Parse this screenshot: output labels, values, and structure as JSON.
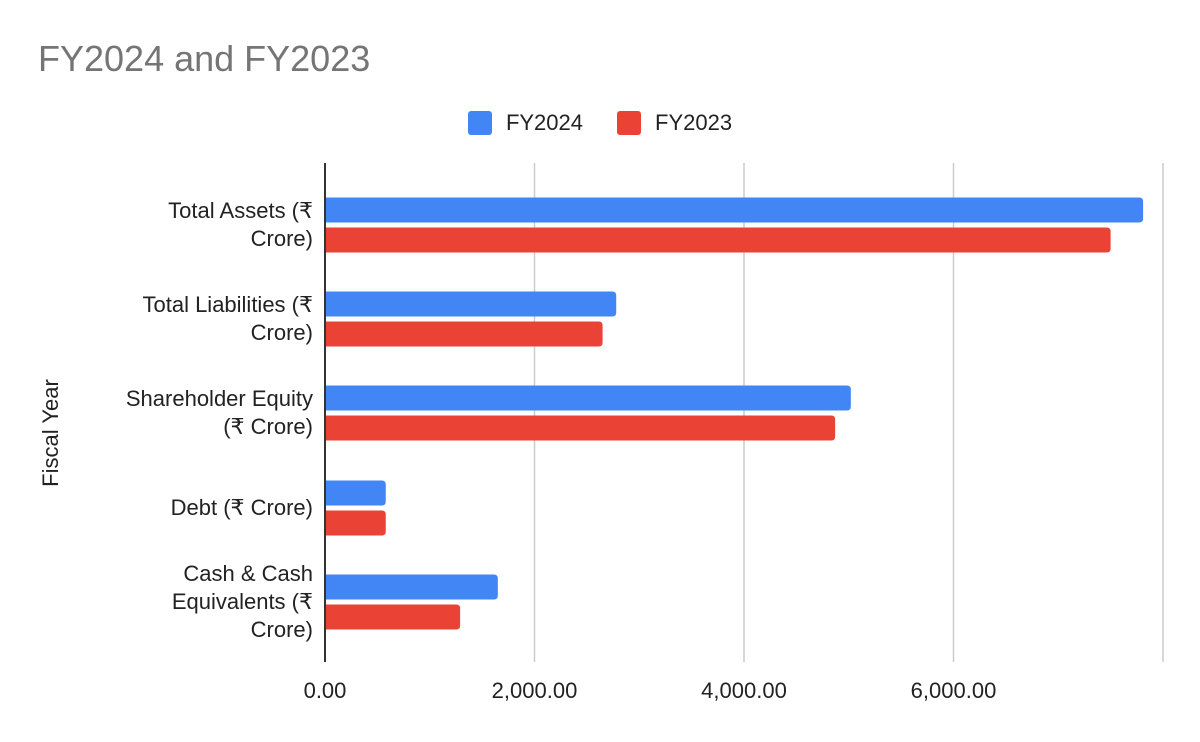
{
  "chart_data": {
    "type": "bar",
    "orientation": "horizontal",
    "title": "FY2024 and FY2023",
    "ylabel": "Fiscal Year",
    "xlabel": "",
    "categories": [
      "Total Assets (₹ Crore)",
      "Total Liabilities (₹ Crore)",
      "Shareholder Equity (₹ Crore)",
      "Debt (₹ Crore)",
      "Cash & Cash Equivalents (₹ Crore)"
    ],
    "category_label_lines": [
      [
        "Total Assets (₹",
        "Crore)"
      ],
      [
        "Total Liabilities (₹",
        "Crore)"
      ],
      [
        "Shareholder Equity",
        "(₹ Crore)"
      ],
      [
        "Debt (₹ Crore)"
      ],
      [
        "Cash & Cash",
        "Equivalents (₹",
        "Crore)"
      ]
    ],
    "series": [
      {
        "name": "FY2024",
        "color": "#4285F4",
        "values": [
          7810,
          2780,
          5020,
          580,
          1650
        ]
      },
      {
        "name": "FY2023",
        "color": "#EA4335",
        "values": [
          7500,
          2650,
          4870,
          580,
          1290
        ]
      }
    ],
    "xlim": [
      0,
      8000
    ],
    "xticks": [
      0,
      2000,
      4000,
      6000
    ],
    "xtick_labels": [
      "0.00",
      "2,000.00",
      "4,000.00",
      "6,000.00"
    ],
    "grid": true,
    "legend_position": "top-center"
  }
}
